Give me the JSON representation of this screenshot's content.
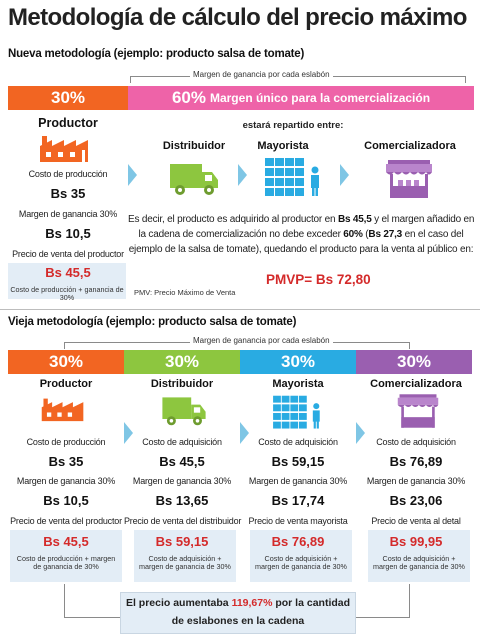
{
  "title": "Metodología de cálculo del precio máximo",
  "new_method": {
    "heading": "Nueva metodología (ejemplo: producto salsa de tomate)",
    "bracket_label": "Margen de ganancia por cada eslabón",
    "bar_left": {
      "pct": "30%",
      "color": "#f26522"
    },
    "bar_right": {
      "pct": "60%",
      "text": "Margen único para la comercialización",
      "color": "#ee63a8"
    },
    "repartido": "estará repartido entre:",
    "producer": {
      "head": "Productor",
      "icon": "factory-icon",
      "cost_label": "Costo de producción",
      "cost_value": "Bs 35",
      "margin_label": "Margen de ganancia 30%",
      "margin_value": "Bs 10,5",
      "sale_label": "Precio de venta del productor",
      "sale_value": "Bs 45,5",
      "sale_note": "Costo de producción + ganancia de 30%"
    },
    "actors": [
      {
        "head": "Distribuidor",
        "icon": "truck-icon"
      },
      {
        "head": "Mayorista",
        "icon": "warehouse-icon"
      },
      {
        "head": "Comercializadora",
        "icon": "market-stall-icon"
      }
    ],
    "para1_a": "Es decir, el producto es adquirido al productor en ",
    "para1_b": "Bs 45,5",
    "para1_c": " y el margen añadido en",
    "para2_a": "la cadena de comercialización no debe exceder ",
    "para2_b": "60%",
    "para2_c": " (",
    "para2_d": "Bs 27,3",
    "para2_e": " en el caso del",
    "para3": "ejemplo de la salsa de tomate), quedando el producto para la venta al público en:",
    "pmvp": "PMVP= Bs 72,80",
    "footnote": "PMV: Precio Máximo de Venta"
  },
  "old_method": {
    "heading": "Vieja metodología (ejemplo: producto salsa de tomate)",
    "bracket_label": "Margen de ganancia por cada eslabón",
    "bars": [
      {
        "pct": "30%",
        "color": "#f26522"
      },
      {
        "pct": "30%",
        "color": "#8dc63f"
      },
      {
        "pct": "30%",
        "color": "#29abe2"
      },
      {
        "pct": "30%",
        "color": "#9a5fb0"
      }
    ],
    "columns": [
      {
        "head": "Productor",
        "icon": "factory-icon",
        "cost_label": "Costo de producción",
        "cost_value": "Bs 35",
        "margin_label": "Margen de ganancia 30%",
        "margin_value": "Bs 10,5",
        "sale_label": "Precio de venta del productor",
        "sale_value": "Bs 45,5",
        "note": "Costo de producción + margen de ganancia de 30%"
      },
      {
        "head": "Distribuidor",
        "icon": "truck-icon",
        "cost_label": "Costo de adquisición",
        "cost_value": "Bs 45,5",
        "margin_label": "Margen de ganancia 30%",
        "margin_value": "Bs 13,65",
        "sale_label": "Precio de venta del distribuidor",
        "sale_value": "Bs 59,15",
        "note": "Costo de adquisición + margen de ganancia de 30%"
      },
      {
        "head": "Mayorista",
        "icon": "warehouse-icon",
        "cost_label": "Costo de adquisición",
        "cost_value": "Bs 59,15",
        "margin_label": "Margen de ganancia 30%",
        "margin_value": "Bs 17,74",
        "sale_label": "Precio de venta mayorista",
        "sale_value": "Bs 76,89",
        "note": "Costo de adquisición + margen de ganancia de 30%"
      },
      {
        "head": "Comercializadora",
        "icon": "market-stall-icon",
        "cost_label": "Costo de adquisición",
        "cost_value": "Bs 76,89",
        "margin_label": "Margen de ganancia 30%",
        "margin_value": "Bs 23,06",
        "sale_label": "Precio de venta al detal",
        "sale_value": "Bs 99,95",
        "note": "Costo de adquisición + margen de ganancia de 30%"
      }
    ],
    "summary_a": "El precio aumentaba ",
    "summary_b": "119,67%",
    "summary_c": " por la cantidad",
    "summary_d": "de eslabones en la cadena"
  }
}
